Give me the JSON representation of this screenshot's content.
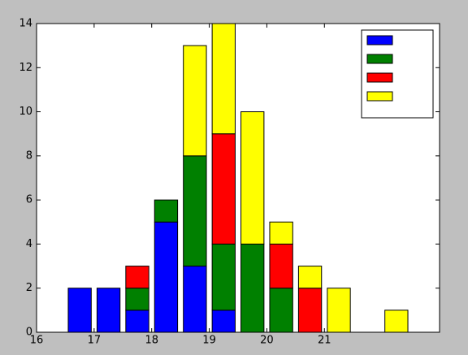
{
  "chart_data": {
    "type": "histogram",
    "stacked": true,
    "bins": [
      16.5,
      17,
      17.5,
      18,
      18.5,
      19,
      19.5,
      20,
      20.5,
      21,
      21.5,
      22,
      22.5
    ],
    "rwidth": 0.8,
    "series": [
      {
        "color": "#0000ff",
        "values": [
          2,
          2,
          1,
          5,
          3,
          1,
          0,
          0,
          0,
          0,
          0,
          0
        ]
      },
      {
        "color": "#008000",
        "values": [
          0,
          0,
          1,
          1,
          5,
          3,
          4,
          2,
          0,
          0,
          0,
          0
        ]
      },
      {
        "color": "#ff0000",
        "values": [
          0,
          0,
          1,
          0,
          0,
          5,
          0,
          2,
          2,
          0,
          0,
          0
        ]
      },
      {
        "color": "#ffff00",
        "values": [
          0,
          0,
          0,
          0,
          5,
          5,
          6,
          1,
          1,
          2,
          0,
          1
        ]
      }
    ],
    "xlim": [
      16,
      23
    ],
    "xticks": [
      16,
      17,
      18,
      19,
      20,
      21
    ],
    "ylim": [
      0,
      14
    ],
    "yticks": [
      0,
      2,
      4,
      6,
      8,
      10,
      12,
      14
    ],
    "legend": "upper right"
  }
}
